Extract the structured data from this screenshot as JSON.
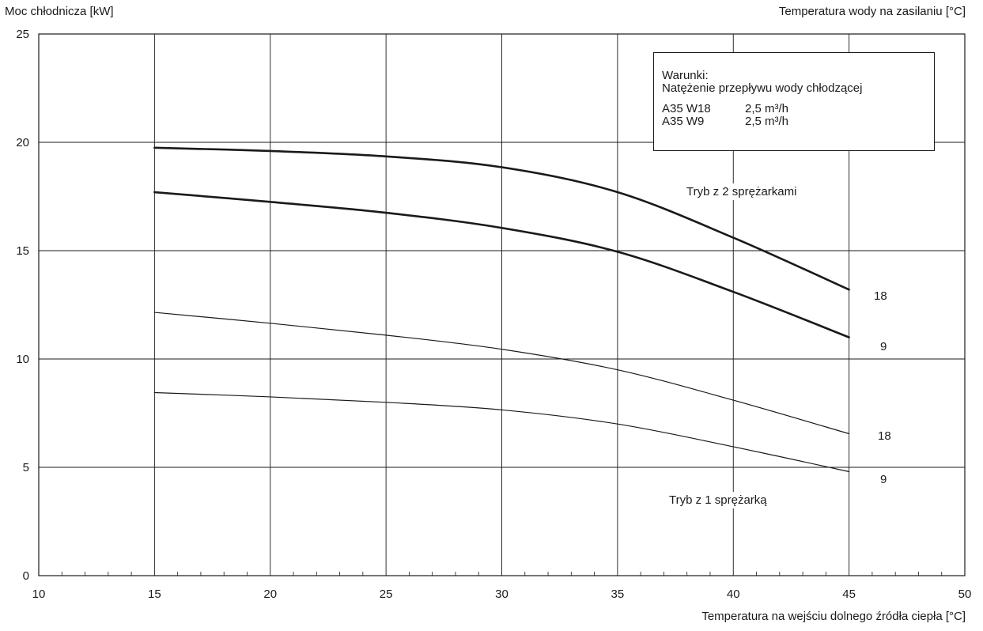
{
  "chart_data": {
    "type": "line",
    "y_axis_title": "Moc chłodnicza [kW]",
    "legend_axis_title": "Temperatura wody na zasilaniu [°C]",
    "xlabel": "Temperatura na wejściu dolnego źródła ciepła [°C]",
    "xlim": [
      10,
      50
    ],
    "ylim": [
      0,
      25
    ],
    "x_ticks": [
      "10",
      "15",
      "20",
      "25",
      "30",
      "35",
      "40",
      "45",
      "50"
    ],
    "y_ticks": [
      "0",
      "5",
      "10",
      "15",
      "20",
      "25"
    ],
    "grid": true,
    "x": [
      15,
      20,
      25,
      30,
      35,
      40,
      45
    ],
    "series": [
      {
        "name": "18",
        "group": "Tryb z 2 sprężarkami",
        "values": [
          19.75,
          19.6,
          19.35,
          18.85,
          17.7,
          15.6,
          13.2
        ]
      },
      {
        "name": "9",
        "group": "Tryb z 2 sprężarkami",
        "values": [
          17.7,
          17.25,
          16.75,
          16.05,
          14.95,
          13.1,
          11.0
        ]
      },
      {
        "name": "18",
        "group": "Tryb z 1 sprężarką",
        "values": [
          12.15,
          11.65,
          11.1,
          10.45,
          9.5,
          8.1,
          6.55
        ]
      },
      {
        "name": "9",
        "group": "Tryb z 1 sprężarką",
        "values": [
          8.45,
          8.25,
          8.0,
          7.65,
          7.0,
          5.95,
          4.8
        ]
      }
    ],
    "annotations": {
      "mode2": "Tryb z 2 sprężarkami",
      "mode1": "Tryb z 1 sprężarką"
    },
    "conditions": {
      "title": "Warunki:",
      "subtitle": "Natężenie przepływu wody chłodzącej",
      "rows": [
        {
          "label": "A35 W18",
          "value": "2,5 m³/h"
        },
        {
          "label": "A35 W9",
          "value": "2,5 m³/h"
        }
      ]
    }
  }
}
